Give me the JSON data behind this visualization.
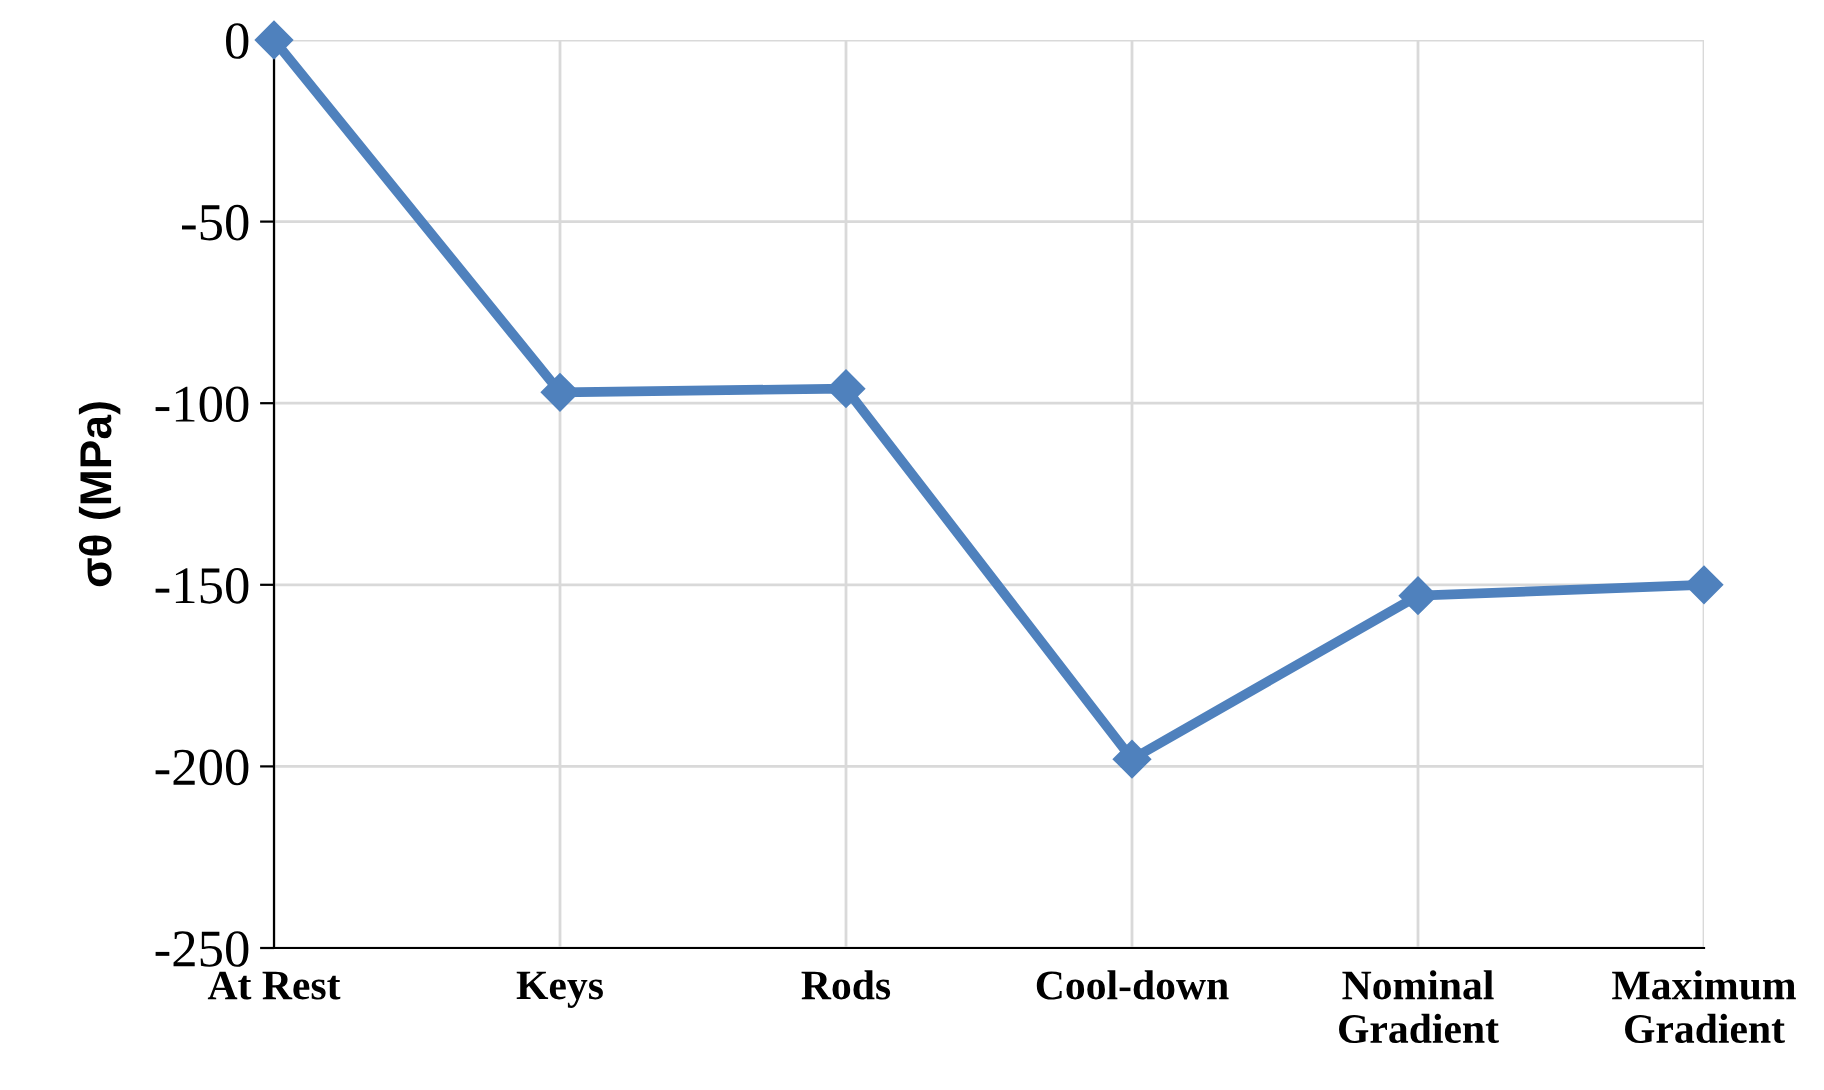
{
  "chart_data": {
    "type": "line",
    "ylabel": "σθ (MPa)",
    "categories": [
      "At Rest",
      "Keys",
      "Rods",
      "Cool-down",
      "Nominal\nGradient",
      "Maximum\nGradient"
    ],
    "series": [
      {
        "color": "#4f81bd",
        "values": [
          0,
          -97,
          -96,
          -198,
          -153,
          -150
        ]
      }
    ],
    "ylim": [
      -250,
      0
    ],
    "yticks": [
      -250,
      -200,
      -150,
      -100,
      -50,
      0
    ],
    "grid": true,
    "marker": "diamond",
    "line_style": "solid"
  }
}
